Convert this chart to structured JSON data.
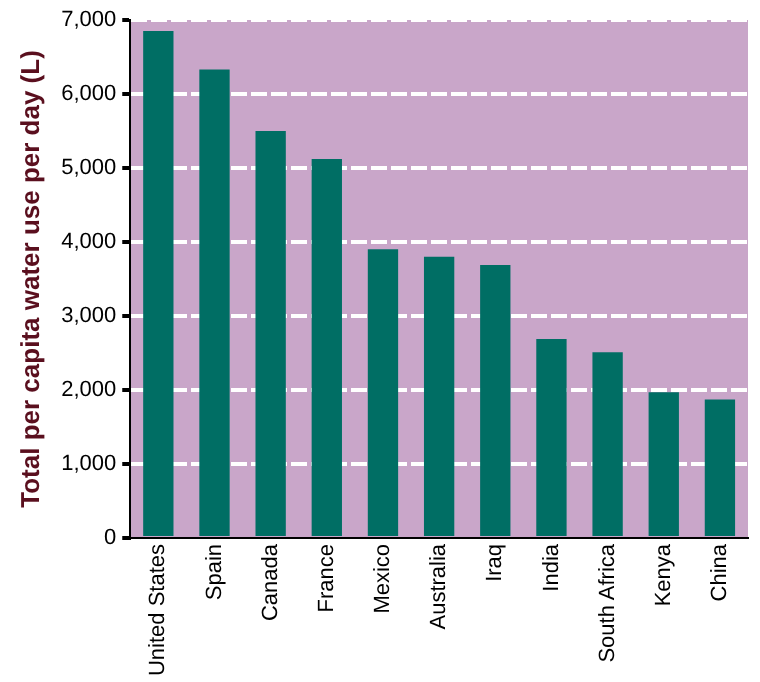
{
  "chart_data": {
    "type": "bar",
    "ylabel": "Total per capita water use per day (L)",
    "categories": [
      "United States",
      "Spain",
      "Canada",
      "France",
      "Mexico",
      "Australia",
      "Iraq",
      "India",
      "South Africa",
      "Kenya",
      "China"
    ],
    "values": [
      6850,
      6330,
      5500,
      5120,
      3900,
      3800,
      3690,
      2690,
      2510,
      1970,
      1870
    ],
    "color": "#006e64",
    "ylim": [
      0,
      7000
    ],
    "yticks": [
      {
        "value": 0,
        "label": "0"
      },
      {
        "value": 1000,
        "label": "1,000"
      },
      {
        "value": 2000,
        "label": "2,000"
      },
      {
        "value": 3000,
        "label": "3,000"
      },
      {
        "value": 4000,
        "label": "4,000"
      },
      {
        "value": 5000,
        "label": "5,000"
      },
      {
        "value": 6000,
        "label": "6,000"
      },
      {
        "value": 7000,
        "label": "7,000"
      }
    ],
    "grid": "y",
    "legend": false
  }
}
